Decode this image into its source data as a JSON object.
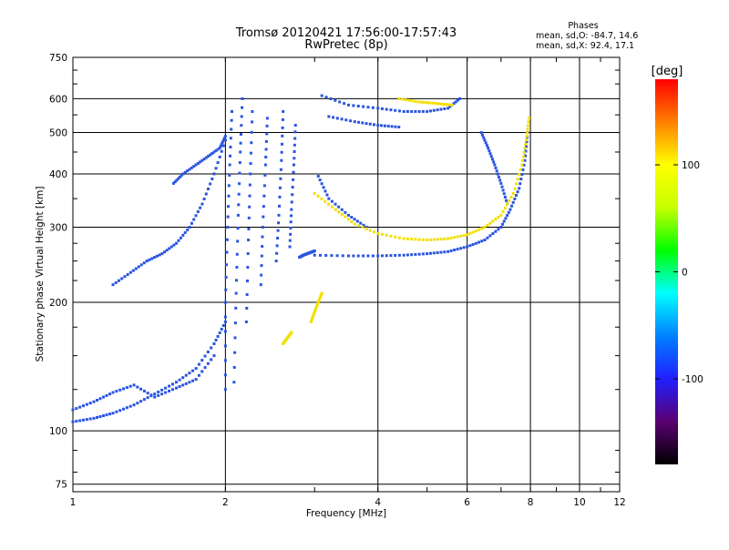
{
  "header": {
    "title": "Tromsø 20120421 17:56:00-17:57:43",
    "subtitle": "RwPretec (8p)"
  },
  "stats": {
    "heading": "Phases",
    "line_o": "mean, sd,O: -84.7, 14.6",
    "line_x": "mean, sd,X:  92.4, 17.1"
  },
  "colorbar": {
    "label": "[deg]",
    "range": [
      -180,
      180
    ],
    "tick_labels": [
      "100",
      "0",
      "-100"
    ],
    "colors": [
      "#000000",
      "#5a0070",
      "#2020ff",
      "#0080ff",
      "#00ffff",
      "#00ff00",
      "#c8ff00",
      "#ffff00",
      "#ff8000",
      "#ff0000"
    ]
  },
  "chart_data": {
    "type": "scatter",
    "title": "Tromsø 20120421 17:56:00-17:57:43",
    "subtitle": "RwPretec (8p)",
    "xlabel": "Frequency [MHz]",
    "ylabel": "Stationary phase Virtual Height [km]",
    "xscale": "log",
    "yscale": "log",
    "xlim": [
      1,
      12
    ],
    "ylim": [
      72,
      750
    ],
    "x_ticks": [
      1,
      2,
      4,
      6,
      8,
      10,
      12
    ],
    "x_tick_labels": [
      "1",
      "2",
      "4",
      "6",
      "8",
      "10",
      "12"
    ],
    "y_ticks": [
      75,
      100,
      200,
      300,
      400,
      500,
      600,
      750
    ],
    "y_tick_labels": [
      "75",
      "100",
      "200",
      "300",
      "400",
      "500",
      "600",
      "750"
    ],
    "grid": true,
    "color_variable": "phase [deg]",
    "series": [
      {
        "mode": "O",
        "phase_mean": -84.7,
        "color": "#2a55e0",
        "traces": [
          {
            "x": [
              1.0,
              1.1,
              1.2,
              1.32,
              1.45,
              1.6,
              1.75,
              1.9,
              2.0
            ],
            "y": [
              105,
              107,
              110,
              115,
              122,
              130,
              140,
              160,
              180
            ]
          },
          {
            "x": [
              1.0,
              1.1,
              1.2,
              1.32,
              1.45,
              1.6,
              1.75,
              1.9
            ],
            "y": [
              112,
              117,
              123,
              128,
              120,
              126,
              132,
              150
            ]
          },
          {
            "x": [
              1.2,
              1.3,
              1.4,
              1.5,
              1.6,
              1.7,
              1.8,
              1.9,
              2.0
            ],
            "y": [
              220,
              235,
              250,
              260,
              275,
              300,
              340,
              400,
              480
            ]
          },
          {
            "x": [
              1.58,
              1.65,
              1.75,
              1.85,
              1.95,
              2.0
            ],
            "y": [
              380,
              400,
              420,
              440,
              460,
              490
            ]
          },
          {
            "x": [
              2.0,
              2.0,
              2.02,
              2.04,
              2.06
            ],
            "y": [
              125,
              200,
              300,
              420,
              560
            ]
          },
          {
            "x": [
              2.08,
              2.1,
              2.12,
              2.14,
              2.16
            ],
            "y": [
              130,
              210,
              320,
              450,
              600
            ]
          },
          {
            "x": [
              2.2,
              2.22,
              2.24,
              2.26
            ],
            "y": [
              180,
              280,
              400,
              560
            ]
          },
          {
            "x": [
              2.35,
              2.37,
              2.4,
              2.42
            ],
            "y": [
              220,
              300,
              420,
              540
            ]
          },
          {
            "x": [
              2.52,
              2.55,
              2.58,
              2.6
            ],
            "y": [
              250,
              320,
              430,
              560
            ]
          },
          {
            "x": [
              2.68,
              2.7,
              2.73,
              2.75
            ],
            "y": [
              270,
              330,
              420,
              520
            ]
          },
          {
            "x": [
              2.8,
              2.85,
              2.9,
              2.95,
              3.0
            ],
            "y": [
              255,
              258,
              260,
              262,
              264
            ]
          },
          {
            "x": [
              3.0,
              3.5,
              4.0,
              4.5,
              5.0,
              5.5,
              6.0,
              6.5,
              7.0,
              7.3,
              7.6,
              7.8,
              7.9
            ],
            "y": [
              258,
              257,
              257,
              258,
              260,
              263,
              270,
              280,
              300,
              330,
              370,
              430,
              500
            ]
          },
          {
            "x": [
              3.05,
              3.2,
              3.5,
              3.8
            ],
            "y": [
              395,
              350,
              320,
              300
            ]
          },
          {
            "x": [
              3.1,
              3.5,
              4.0,
              4.5,
              5.0,
              5.5,
              5.8
            ],
            "y": [
              610,
              580,
              570,
              560,
              560,
              570,
              600
            ]
          },
          {
            "x": [
              3.2,
              3.6,
              4.0,
              4.4
            ],
            "y": [
              545,
              530,
              520,
              515
            ]
          },
          {
            "x": [
              6.4,
              6.6,
              6.8,
              7.0,
              7.2
            ],
            "y": [
              500,
              460,
              420,
              380,
              340
            ]
          }
        ]
      },
      {
        "mode": "X",
        "phase_mean": 92.4,
        "color": "#f2e000",
        "traces": [
          {
            "x": [
              3.0,
              3.3,
              3.6,
              4.0,
              4.5,
              5.0,
              5.5,
              6.0,
              6.5,
              7.0,
              7.4,
              7.7,
              7.85,
              7.95
            ],
            "y": [
              360,
              330,
              305,
              290,
              282,
              280,
              282,
              288,
              300,
              320,
              360,
              420,
              480,
              540
            ]
          },
          {
            "x": [
              2.95,
              3.0,
              3.05,
              3.1
            ],
            "y": [
              180,
              190,
              200,
              210
            ]
          },
          {
            "x": [
              4.4,
              4.8,
              5.2,
              5.6
            ],
            "y": [
              600,
              590,
              585,
              580
            ]
          },
          {
            "x": [
              2.6,
              2.65,
              2.7
            ],
            "y": [
              160,
              165,
              170
            ]
          }
        ]
      }
    ]
  }
}
